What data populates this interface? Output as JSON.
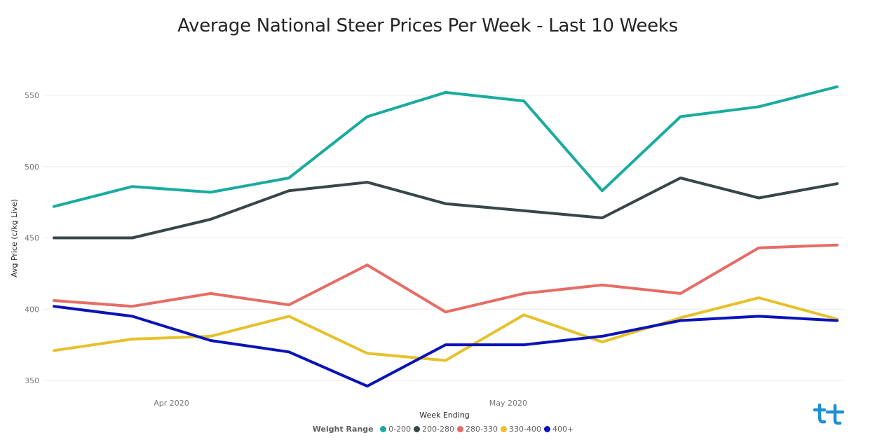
{
  "chart_data": {
    "type": "line",
    "title": "Average National Steer Prices Per Week - Last 10 Weeks",
    "xlabel": "Week Ending",
    "ylabel": "Avg Price (c/kg Live)",
    "yticks": [
      350,
      400,
      450,
      500,
      550
    ],
    "ylim": [
      340,
      570
    ],
    "x_tick_labels": [
      {
        "label": "Apr 2020",
        "index": 1.5
      },
      {
        "label": "May 2020",
        "index": 5.8
      }
    ],
    "grid": true,
    "legend_title": "Weight Range",
    "legend_position": "bottom",
    "series": [
      {
        "name": "0-200",
        "color": "#1AAB9F",
        "values": [
          472,
          486,
          482,
          492,
          535,
          552,
          546,
          483,
          535,
          542,
          556
        ]
      },
      {
        "name": "200-280",
        "color": "#374649",
        "values": [
          450,
          450,
          463,
          483,
          489,
          474,
          469,
          464,
          492,
          478,
          488
        ]
      },
      {
        "name": "280-330",
        "color": "#E66C66",
        "values": [
          406,
          402,
          411,
          403,
          431,
          398,
          411,
          417,
          411,
          443,
          445
        ]
      },
      {
        "name": "330-400",
        "color": "#E6C12C",
        "values": [
          371,
          379,
          381,
          395,
          369,
          364,
          396,
          377,
          394,
          408,
          393
        ]
      },
      {
        "name": "400+",
        "color": "#0A12B8",
        "values": [
          402,
          395,
          378,
          370,
          346,
          375,
          375,
          381,
          392,
          395,
          392
        ]
      }
    ]
  }
}
